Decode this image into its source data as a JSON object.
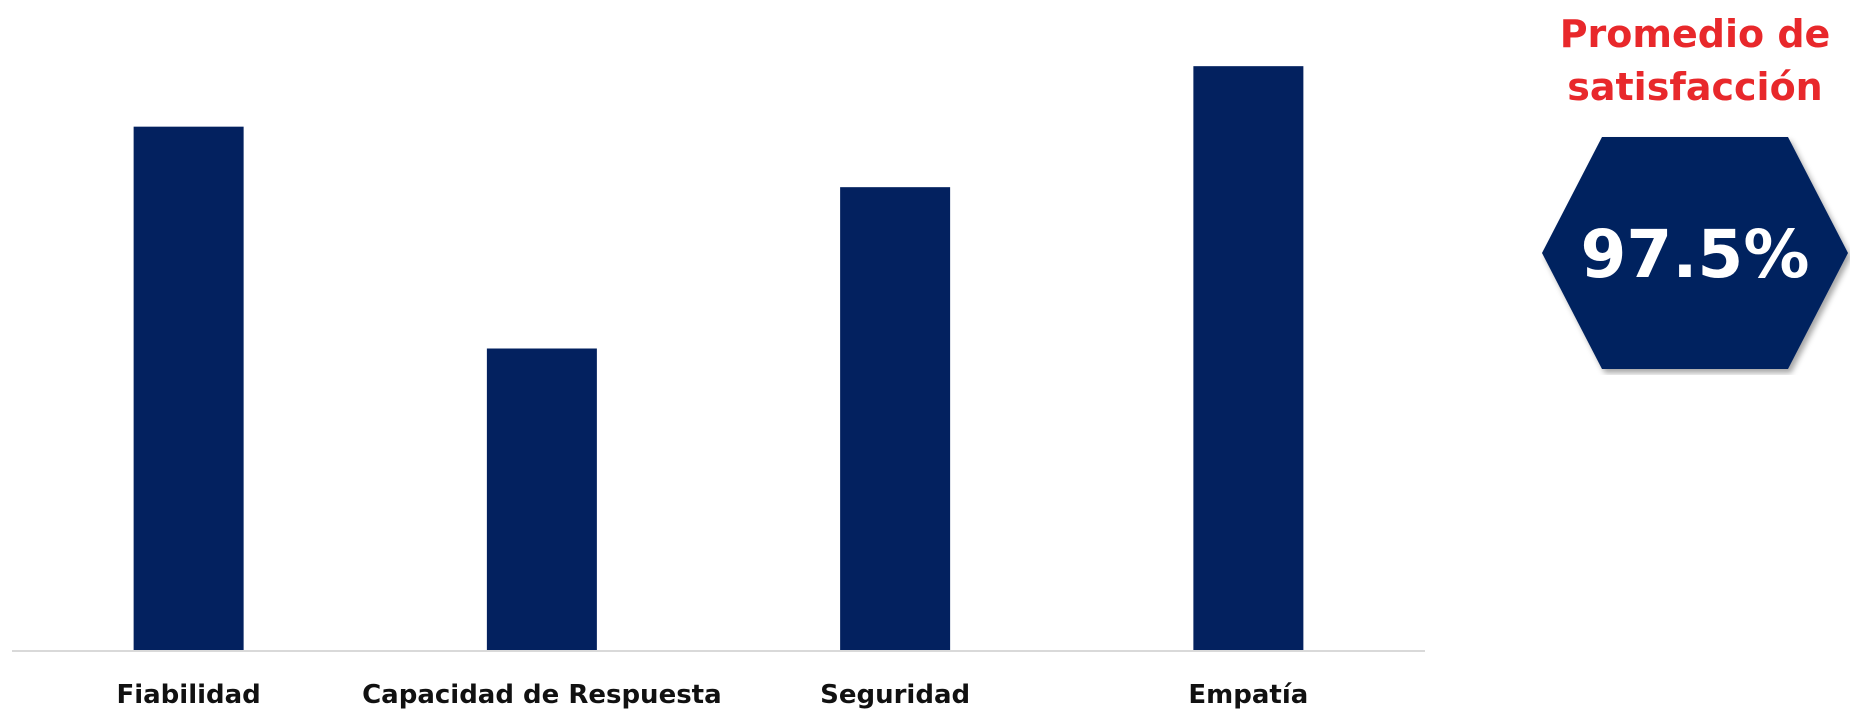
{
  "colors": {
    "bar": "#03215f",
    "axis": "#d9d9d9",
    "accent": "#e8282b",
    "badge_fill": "#03215f",
    "badge_text": "#ffffff"
  },
  "badge": {
    "title_line1": "Promedio de",
    "title_line2": "satisfacción",
    "value": "97.5%",
    "level": 97.5
  },
  "chart_data": {
    "type": "bar",
    "title": "",
    "xlabel": "",
    "ylabel": "",
    "categories": [
      "Fiabilidad",
      "Capacidad de Respuesta",
      "Seguridad",
      "Empatía"
    ],
    "values": [
      97.6,
      96.5,
      97.3,
      97.9
    ],
    "ylim": [
      95,
      98
    ],
    "grid": false,
    "data_labels": false,
    "legend": "none"
  }
}
